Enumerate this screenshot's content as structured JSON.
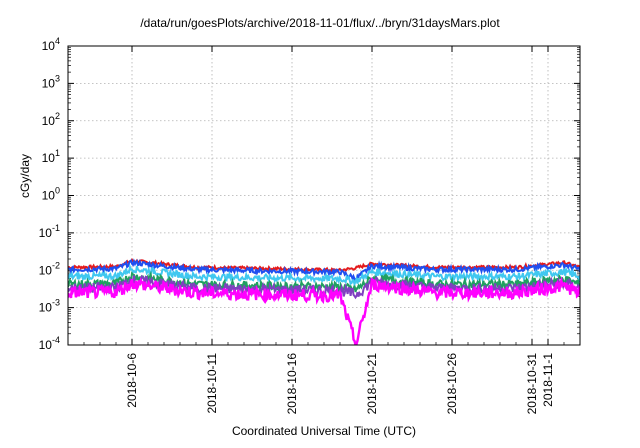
{
  "chart_data": {
    "type": "line",
    "title": "/data/run/goesPlots/archive/2018-11-01/flux/../bryn/31daysMars.plot",
    "xlabel": "Coordinated Universal Time (UTC)",
    "ylabel": "cGy/day",
    "yscale": "log",
    "ylim": [
      0.0001,
      10000
    ],
    "xlim": [
      "2018-10-02",
      "2018-11-03"
    ],
    "grid": true,
    "y_ticks": [
      {
        "base": "10",
        "exp": "4",
        "value": 10000
      },
      {
        "base": "10",
        "exp": "3",
        "value": 1000
      },
      {
        "base": "10",
        "exp": "2",
        "value": 100
      },
      {
        "base": "10",
        "exp": "1",
        "value": 10
      },
      {
        "base": "10",
        "exp": "0",
        "value": 1
      },
      {
        "base": "10",
        "exp": "-1",
        "value": 0.1
      },
      {
        "base": "10",
        "exp": "-2",
        "value": 0.01
      },
      {
        "base": "10",
        "exp": "-3",
        "value": 0.001
      },
      {
        "base": "10",
        "exp": "-4",
        "value": 0.0001
      }
    ],
    "x_ticks": [
      {
        "label": "2018-10-6",
        "date": "2018-10-06"
      },
      {
        "label": "2018-10-11",
        "date": "2018-10-11"
      },
      {
        "label": "2018-10-16",
        "date": "2018-10-16"
      },
      {
        "label": "2018-10-21",
        "date": "2018-10-21"
      },
      {
        "label": "2018-10-26",
        "date": "2018-10-26"
      },
      {
        "label": "2018-10-31",
        "date": "2018-10-31"
      },
      {
        "label": "2018-11-1",
        "date": "2018-11-01"
      }
    ],
    "series": [
      {
        "color": "#e41a1c",
        "x": [
          "2018-10-02",
          "2018-10-05",
          "2018-10-06",
          "2018-10-10",
          "2018-10-15",
          "2018-10-19",
          "2018-10-20",
          "2018-10-21",
          "2018-10-25",
          "2018-10-30",
          "2018-11-02",
          "2018-11-03"
        ],
        "y": [
          0.012,
          0.0125,
          0.018,
          0.012,
          0.011,
          0.01,
          0.0115,
          0.015,
          0.012,
          0.012,
          0.016,
          0.012
        ]
      },
      {
        "color": "#1f4ff0",
        "x": [
          "2018-10-02",
          "2018-10-05",
          "2018-10-06",
          "2018-10-10",
          "2018-10-15",
          "2018-10-19",
          "2018-10-20",
          "2018-10-21",
          "2018-10-25",
          "2018-10-30",
          "2018-11-02",
          "2018-11-03"
        ],
        "y": [
          0.0105,
          0.011,
          0.016,
          0.0105,
          0.0095,
          0.009,
          0.006,
          0.013,
          0.0105,
          0.0105,
          0.014,
          0.0105
        ]
      },
      {
        "color": "#40c8f0",
        "x": [
          "2018-10-02",
          "2018-10-05",
          "2018-10-06",
          "2018-10-10",
          "2018-10-15",
          "2018-10-19",
          "2018-10-20",
          "2018-10-21",
          "2018-10-25",
          "2018-10-30",
          "2018-11-02",
          "2018-11-03"
        ],
        "y": [
          0.0068,
          0.007,
          0.011,
          0.0068,
          0.0062,
          0.006,
          0.005,
          0.009,
          0.0068,
          0.0068,
          0.009,
          0.0068
        ]
      },
      {
        "color": "#20a060",
        "x": [
          "2018-10-02",
          "2018-10-05",
          "2018-10-06",
          "2018-10-10",
          "2018-10-15",
          "2018-10-19",
          "2018-10-20",
          "2018-10-21",
          "2018-10-25",
          "2018-10-30",
          "2018-11-02",
          "2018-11-03"
        ],
        "y": [
          0.0042,
          0.0044,
          0.007,
          0.0042,
          0.0038,
          0.0036,
          0.003,
          0.006,
          0.0042,
          0.0042,
          0.0058,
          0.0042
        ]
      },
      {
        "color": "#8040c0",
        "x": [
          "2018-10-02",
          "2018-10-05",
          "2018-10-06",
          "2018-10-10",
          "2018-10-15",
          "2018-10-19",
          "2018-10-20",
          "2018-10-21",
          "2018-10-25",
          "2018-10-30",
          "2018-11-02",
          "2018-11-03"
        ],
        "y": [
          0.0033,
          0.0034,
          0.0055,
          0.0033,
          0.003,
          0.0029,
          0.0022,
          0.0048,
          0.0033,
          0.0033,
          0.0045,
          0.0033
        ]
      },
      {
        "color": "#ff00ff",
        "x": [
          "2018-10-02",
          "2018-10-05",
          "2018-10-06",
          "2018-10-10",
          "2018-10-15",
          "2018-10-19",
          "2018-10-20",
          "2018-10-21",
          "2018-10-25",
          "2018-10-30",
          "2018-11-02",
          "2018-11-03"
        ],
        "y": [
          0.0025,
          0.0026,
          0.0045,
          0.0025,
          0.0022,
          0.0021,
          0.0001,
          0.0042,
          0.0025,
          0.0025,
          0.0038,
          0.0025
        ]
      }
    ]
  }
}
